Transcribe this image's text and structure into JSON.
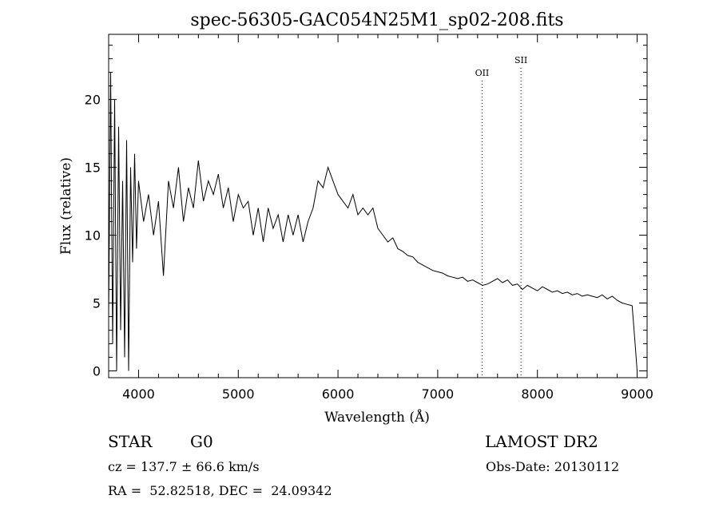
{
  "chart_data": {
    "type": "line",
    "title": "spec-56305-GAC054N25M1_sp02-208.fits",
    "xlabel": "Wavelength (Å)",
    "ylabel": "Flux (relative)",
    "xlim": [
      3700,
      9100
    ],
    "ylim": [
      -0.5,
      24.8
    ],
    "xticks": [
      4000,
      5000,
      6000,
      7000,
      8000,
      9000
    ],
    "yticks": [
      0,
      5,
      10,
      15,
      20
    ],
    "grid": false,
    "line_color": "#000000",
    "series": [
      {
        "x": [
          3700,
          3720,
          3740,
          3760,
          3780,
          3800,
          3820,
          3840,
          3860,
          3880,
          3900,
          3920,
          3940,
          3960,
          3980,
          4000,
          4050,
          4100,
          4150,
          4200,
          4250,
          4300,
          4350,
          4400,
          4450,
          4500,
          4550,
          4600,
          4650,
          4700,
          4750,
          4800,
          4850,
          4900,
          4950,
          5000,
          5050,
          5100,
          5150,
          5200,
          5250,
          5300,
          5350,
          5400,
          5450,
          5500,
          5550,
          5600,
          5650,
          5700,
          5750,
          5800,
          5850,
          5900,
          5950,
          6000,
          6050,
          6100,
          6150,
          6200,
          6250,
          6300,
          6350,
          6400,
          6450,
          6500,
          6550,
          6600,
          6650,
          6700,
          6750,
          6800,
          6850,
          6900,
          6950,
          7000,
          7050,
          7100,
          7150,
          7200,
          7250,
          7300,
          7350,
          7400,
          7450,
          7500,
          7550,
          7600,
          7650,
          7700,
          7750,
          7800,
          7850,
          7900,
          7950,
          8000,
          8050,
          8100,
          8150,
          8200,
          8250,
          8300,
          8350,
          8400,
          8450,
          8500,
          8550,
          8600,
          8650,
          8700,
          8750,
          8800,
          8850,
          8900,
          8950,
          8980,
          9000
        ],
        "y": [
          4.0,
          22.0,
          2.0,
          20.0,
          0.0,
          18.0,
          3.0,
          14.0,
          1.0,
          17.0,
          0.0,
          15.0,
          8.0,
          16.0,
          9.0,
          14.0,
          11.0,
          13.0,
          10.0,
          12.5,
          7.0,
          14.0,
          12.0,
          15.0,
          11.0,
          13.5,
          12.0,
          15.5,
          12.5,
          14.0,
          13.0,
          14.5,
          12.0,
          13.5,
          11.0,
          13.0,
          12.0,
          12.5,
          10.0,
          12.0,
          9.5,
          12.0,
          10.5,
          11.5,
          9.5,
          11.5,
          10.0,
          11.5,
          9.5,
          11.0,
          12.0,
          14.0,
          13.5,
          15.0,
          14.0,
          13.0,
          12.5,
          12.0,
          13.0,
          11.5,
          12.0,
          11.5,
          12.0,
          10.5,
          10.0,
          9.5,
          9.8,
          9.0,
          8.8,
          8.5,
          8.4,
          8.0,
          7.8,
          7.6,
          7.4,
          7.3,
          7.2,
          7.0,
          6.9,
          6.8,
          6.9,
          6.6,
          6.7,
          6.5,
          6.3,
          6.4,
          6.6,
          6.8,
          6.5,
          6.7,
          6.3,
          6.4,
          6.0,
          6.3,
          6.1,
          5.9,
          6.2,
          6.0,
          5.8,
          5.9,
          5.7,
          5.8,
          5.6,
          5.7,
          5.5,
          5.6,
          5.5,
          5.4,
          5.6,
          5.3,
          5.5,
          5.2,
          5.0,
          4.9,
          4.8,
          2.0,
          0.0
        ]
      }
    ],
    "annotations": [
      {
        "text": "OII",
        "x": 7445
      },
      {
        "text": "SII",
        "x": 7835
      }
    ]
  },
  "info": {
    "object_class": "STAR",
    "subclass": "G0",
    "redshift_line": "cz = 137.7 ± 66.6 km/s",
    "coord_line": "RA =  52.82518, DEC =  24.09342",
    "survey": "LAMOST DR2",
    "obs_date": "Obs-Date: 20130112"
  }
}
